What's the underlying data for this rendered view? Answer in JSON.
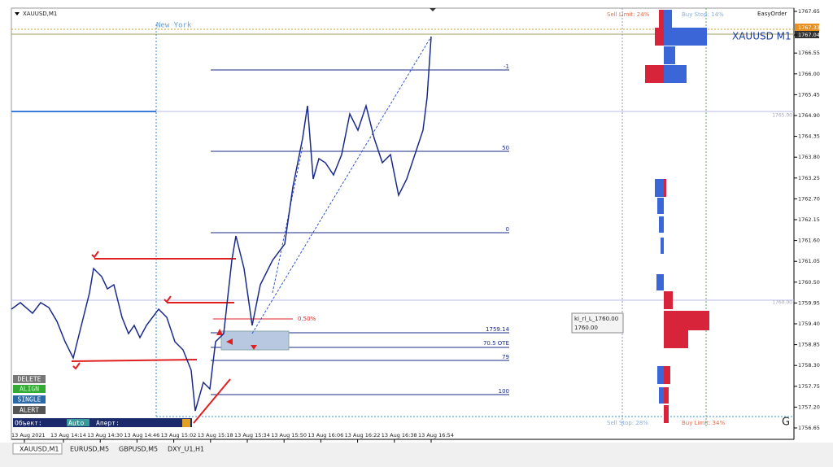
{
  "window": {
    "symbol_title": "XAUUSD,M1",
    "session": "New York",
    "chart_label": "XAUUSD  M1",
    "easy_order": "EasyOrder"
  },
  "orders": {
    "sell_limit": "Sell Limit: 24%",
    "buy_stop": "Buy Stop: 14%",
    "sell_stop": "Sell Stop: 28%",
    "buy_limit": "Buy Limit: 34%"
  },
  "price_axis": {
    "labels": [
      "1767.65",
      "1767.04",
      "1766.55",
      "1766.00",
      "1765.45",
      "1764.90",
      "1764.35",
      "1763.80",
      "1763.25",
      "1762.70",
      "1762.15",
      "1761.60",
      "1761.05",
      "1760.50",
      "1759.95",
      "1759.40",
      "1758.85",
      "1758.30",
      "1757.75",
      "1757.20",
      "1756.65"
    ],
    "ask": "1767.33"
  },
  "time_axis": [
    "13 Aug 2021",
    "13 Aug 14:14",
    "13 Aug 14:30",
    "13 Aug 14:46",
    "13 Aug 15:02",
    "13 Aug 15:18",
    "13 Aug 15:34",
    "13 Aug 15:50",
    "13 Aug 16:06",
    "13 Aug 16:22",
    "13 Aug 16:38",
    "13 Aug 16:54"
  ],
  "fib": {
    "minus_one": "-1",
    "fifty": "50",
    "zero": "0",
    "percent": "0.50%",
    "price": "1759.14",
    "ote": "70.5 OTE",
    "seventy_nine": "79",
    "hundred": "100"
  },
  "level_labels": [
    "1765.00",
    "1760.00"
  ],
  "tooltip": {
    "name": "ki_rl_L_1760.00",
    "price": "1760.00"
  },
  "buttons": [
    "DELETE",
    "ALIGN",
    "SINGLE",
    "ALERT"
  ],
  "toolbar": {
    "object": "Объект:",
    "mode": "Auto",
    "alert": "Аперт:"
  },
  "corner": "G",
  "tabs": [
    "XAUUSD,M1",
    "EURUSD,M5",
    "GBPUSD,M5",
    "DXY_U1,H1"
  ]
}
